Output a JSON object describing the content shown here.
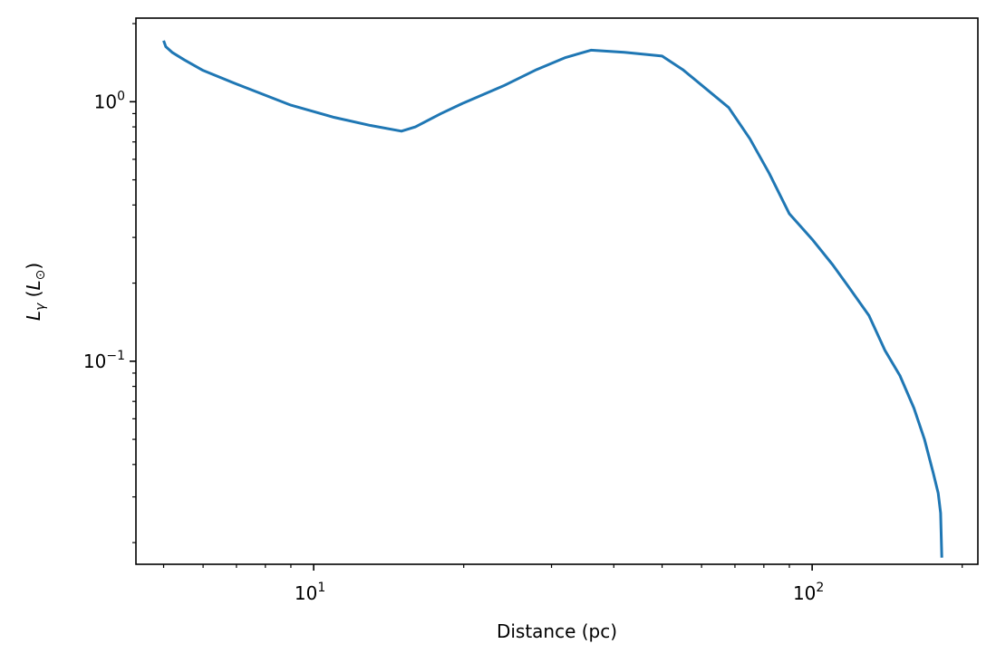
{
  "chart_data": {
    "type": "line",
    "title": "",
    "xlabel": "Distance (pc)",
    "ylabel": "L_γ (L_⊙)",
    "x_scale": "log",
    "y_scale": "log",
    "xlim": [
      4.4,
      215
    ],
    "ylim": [
      0.0165,
      2.1
    ],
    "grid": false,
    "x_ticks": [
      {
        "value": 10,
        "base": "10",
        "exp": "1"
      },
      {
        "value": 100,
        "base": "10",
        "exp": "2"
      }
    ],
    "y_ticks": [
      {
        "value": 1.0,
        "base": "10",
        "exp": "0"
      },
      {
        "value": 0.1,
        "base": "10",
        "exp": "−1"
      }
    ],
    "series": [
      {
        "color": "#1f77b4",
        "x": [
          5.0,
          5.05,
          5.2,
          5.5,
          6.0,
          7.0,
          9.0,
          11.0,
          13.0,
          15.0,
          16.0,
          18.0,
          20.0,
          24.0,
          28.0,
          32.0,
          36.0,
          42.0,
          50.0,
          55.0,
          68.0,
          75.0,
          82.0,
          90.0,
          100.0,
          110.0,
          118.0,
          130.0,
          140.0,
          150.0,
          160.0,
          168.0,
          175.0,
          179.0,
          181.0,
          182.0
        ],
        "values": [
          1.72,
          1.63,
          1.55,
          1.45,
          1.32,
          1.17,
          0.97,
          0.87,
          0.81,
          0.77,
          0.8,
          0.9,
          0.99,
          1.15,
          1.33,
          1.48,
          1.58,
          1.55,
          1.5,
          1.33,
          0.95,
          0.72,
          0.53,
          0.37,
          0.295,
          0.235,
          0.195,
          0.15,
          0.11,
          0.088,
          0.066,
          0.05,
          0.037,
          0.031,
          0.026,
          0.0175
        ]
      }
    ]
  }
}
